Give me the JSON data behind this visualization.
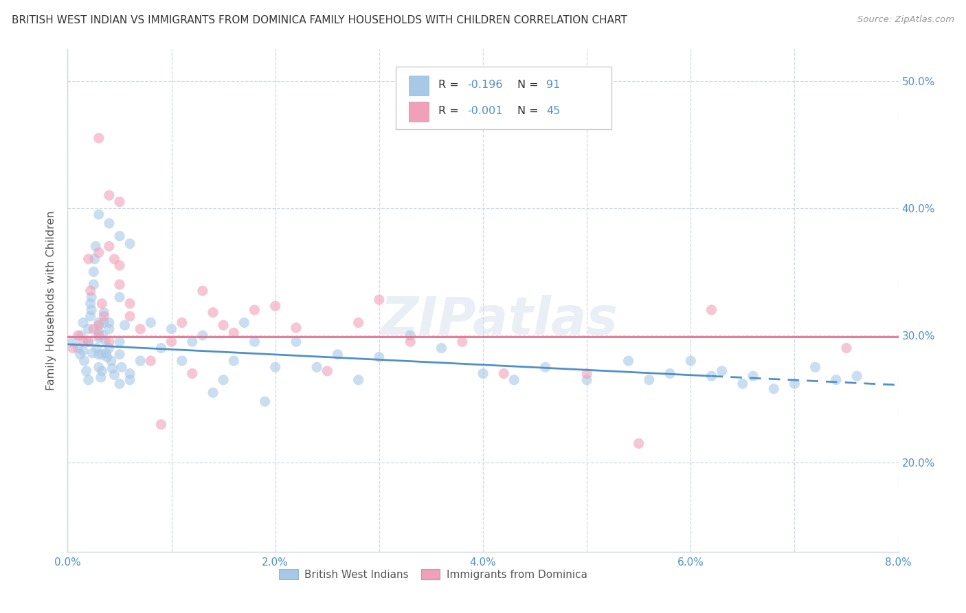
{
  "title": "BRITISH WEST INDIAN VS IMMIGRANTS FROM DOMINICA FAMILY HOUSEHOLDS WITH CHILDREN CORRELATION CHART",
  "source": "Source: ZipAtlas.com",
  "ylabel": "Family Households with Children",
  "xlim": [
    0.0,
    0.08
  ],
  "ylim": [
    0.13,
    0.525
  ],
  "xticks": [
    0.0,
    0.01,
    0.02,
    0.03,
    0.04,
    0.05,
    0.06,
    0.07,
    0.08
  ],
  "xticklabels": [
    "0.0%",
    "",
    "2.0%",
    "",
    "4.0%",
    "",
    "6.0%",
    "",
    "8.0%"
  ],
  "yticks": [
    0.2,
    0.3,
    0.4,
    0.5
  ],
  "yticklabels": [
    "20.0%",
    "30.0%",
    "40.0%",
    "50.0%"
  ],
  "color_blue": "#a8c8e8",
  "color_pink": "#f0a0b8",
  "trend_blue": "#5090c8",
  "trend_pink": "#e87090",
  "tick_color": "#5090c8",
  "grid_color": "#d0d8e0",
  "watermark": "ZIPatlas",
  "marker_size": 120,
  "alpha": 0.6,
  "blue_trend_x0": 0.0,
  "blue_trend_y0": 0.293,
  "blue_trend_x1": 0.062,
  "blue_trend_y1": 0.268,
  "blue_trend_dash_x0": 0.062,
  "blue_trend_dash_y0": 0.268,
  "blue_trend_dash_x1": 0.08,
  "blue_trend_dash_y1": 0.261,
  "pink_trend_y": 0.299,
  "blue_x": [
    0.0005,
    0.001,
    0.0012,
    0.0013,
    0.0015,
    0.0015,
    0.0016,
    0.0018,
    0.002,
    0.002,
    0.002,
    0.0022,
    0.0022,
    0.0023,
    0.0023,
    0.0024,
    0.0025,
    0.0025,
    0.0026,
    0.0027,
    0.0028,
    0.003,
    0.003,
    0.003,
    0.003,
    0.003,
    0.0032,
    0.0033,
    0.0033,
    0.0034,
    0.0035,
    0.0035,
    0.0036,
    0.0037,
    0.0038,
    0.004,
    0.004,
    0.004,
    0.0042,
    0.0043,
    0.0045,
    0.005,
    0.005,
    0.005,
    0.005,
    0.0052,
    0.0055,
    0.006,
    0.006,
    0.007,
    0.008,
    0.009,
    0.01,
    0.011,
    0.012,
    0.013,
    0.014,
    0.015,
    0.016,
    0.017,
    0.018,
    0.019,
    0.02,
    0.022,
    0.024,
    0.026,
    0.028,
    0.03,
    0.033,
    0.036,
    0.04,
    0.043,
    0.046,
    0.05,
    0.054,
    0.056,
    0.058,
    0.06,
    0.062,
    0.063,
    0.065,
    0.066,
    0.068,
    0.07,
    0.072,
    0.074,
    0.076,
    0.003,
    0.004,
    0.005,
    0.006
  ],
  "blue_y": [
    0.295,
    0.29,
    0.285,
    0.3,
    0.31,
    0.288,
    0.28,
    0.272,
    0.265,
    0.295,
    0.305,
    0.315,
    0.325,
    0.33,
    0.32,
    0.286,
    0.34,
    0.35,
    0.36,
    0.37,
    0.29,
    0.298,
    0.31,
    0.303,
    0.285,
    0.275,
    0.267,
    0.272,
    0.285,
    0.3,
    0.318,
    0.31,
    0.296,
    0.286,
    0.283,
    0.31,
    0.29,
    0.305,
    0.28,
    0.274,
    0.269,
    0.33,
    0.295,
    0.285,
    0.262,
    0.275,
    0.308,
    0.265,
    0.27,
    0.28,
    0.31,
    0.29,
    0.305,
    0.28,
    0.295,
    0.3,
    0.255,
    0.265,
    0.28,
    0.31,
    0.295,
    0.248,
    0.275,
    0.295,
    0.275,
    0.285,
    0.265,
    0.283,
    0.3,
    0.29,
    0.27,
    0.265,
    0.275,
    0.265,
    0.28,
    0.265,
    0.27,
    0.28,
    0.268,
    0.272,
    0.262,
    0.268,
    0.258,
    0.262,
    0.275,
    0.265,
    0.268,
    0.395,
    0.388,
    0.378,
    0.372
  ],
  "pink_x": [
    0.0005,
    0.001,
    0.0015,
    0.002,
    0.002,
    0.0022,
    0.0025,
    0.003,
    0.003,
    0.003,
    0.0033,
    0.0035,
    0.004,
    0.004,
    0.0045,
    0.005,
    0.005,
    0.006,
    0.006,
    0.007,
    0.008,
    0.009,
    0.01,
    0.011,
    0.012,
    0.013,
    0.014,
    0.015,
    0.016,
    0.018,
    0.02,
    0.022,
    0.025,
    0.028,
    0.03,
    0.033,
    0.038,
    0.042,
    0.05,
    0.055,
    0.062,
    0.075,
    0.003,
    0.004,
    0.005
  ],
  "pink_y": [
    0.29,
    0.3,
    0.295,
    0.36,
    0.295,
    0.335,
    0.305,
    0.365,
    0.308,
    0.3,
    0.325,
    0.315,
    0.295,
    0.37,
    0.36,
    0.355,
    0.34,
    0.325,
    0.315,
    0.305,
    0.28,
    0.23,
    0.295,
    0.31,
    0.27,
    0.335,
    0.318,
    0.308,
    0.302,
    0.32,
    0.323,
    0.306,
    0.272,
    0.31,
    0.328,
    0.295,
    0.295,
    0.27,
    0.27,
    0.215,
    0.32,
    0.29,
    0.455,
    0.41,
    0.405
  ]
}
